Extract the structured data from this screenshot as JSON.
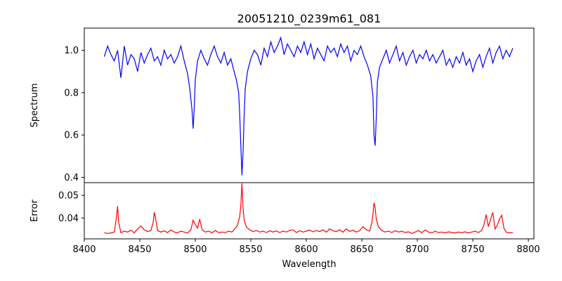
{
  "chart_data": [
    {
      "type": "line",
      "title": "20051210_0239m61_081",
      "xlabel": "",
      "ylabel": "Spectrum",
      "xlim": [
        8400,
        8805
      ],
      "ylim": [
        0.375,
        1.105
      ],
      "x_ticks": [
        8400,
        8450,
        8500,
        8550,
        8600,
        8650,
        8700,
        8750,
        8800
      ],
      "y_ticks": [
        0.4,
        0.6,
        0.8,
        1.0
      ],
      "y_tick_labels": [
        "0.4",
        "0.6",
        "0.8",
        "1.0"
      ],
      "series": [
        {
          "color": "#0000ff",
          "x": [
            8418,
            8421,
            8424,
            8427,
            8430,
            8433,
            8436,
            8439,
            8442,
            8445,
            8448,
            8451,
            8454,
            8457,
            8460,
            8463,
            8466,
            8469,
            8472,
            8475,
            8478,
            8481,
            8484,
            8487,
            8490,
            8493,
            8495,
            8497,
            8498,
            8499,
            8500,
            8502,
            8505,
            8508,
            8511,
            8514,
            8517,
            8520,
            8523,
            8526,
            8529,
            8532,
            8535,
            8537,
            8539,
            8540,
            8541,
            8542,
            8543,
            8544,
            8545,
            8547,
            8550,
            8553,
            8556,
            8559,
            8562,
            8565,
            8568,
            8571,
            8574,
            8577,
            8580,
            8583,
            8586,
            8589,
            8592,
            8595,
            8598,
            8601,
            8604,
            8607,
            8610,
            8613,
            8616,
            8619,
            8622,
            8625,
            8628,
            8631,
            8634,
            8637,
            8640,
            8643,
            8646,
            8649,
            8652,
            8655,
            8658,
            8660,
            8661,
            8662,
            8663,
            8664,
            8666,
            8669,
            8672,
            8675,
            8678,
            8681,
            8684,
            8687,
            8690,
            8693,
            8696,
            8699,
            8702,
            8705,
            8708,
            8711,
            8714,
            8717,
            8720,
            8723,
            8726,
            8729,
            8732,
            8735,
            8738,
            8741,
            8744,
            8747,
            8750,
            8753,
            8756,
            8759,
            8762,
            8765,
            8768,
            8771,
            8774,
            8777,
            8780,
            8783,
            8786
          ],
          "y": [
            0.97,
            1.02,
            0.98,
            0.95,
            1.0,
            0.87,
            1.02,
            0.93,
            0.98,
            0.96,
            0.9,
            0.99,
            0.94,
            0.98,
            1.01,
            0.95,
            0.97,
            0.93,
            1.0,
            0.96,
            0.98,
            0.94,
            0.97,
            1.02,
            0.95,
            0.89,
            0.82,
            0.72,
            0.63,
            0.72,
            0.86,
            0.95,
            1.0,
            0.96,
            0.93,
            0.98,
            1.02,
            0.97,
            0.94,
            0.99,
            0.93,
            0.96,
            0.9,
            0.86,
            0.8,
            0.7,
            0.55,
            0.41,
            0.52,
            0.7,
            0.82,
            0.9,
            0.96,
            1.0,
            0.98,
            0.93,
            1.01,
            0.97,
            1.04,
            0.99,
            1.02,
            1.06,
            0.98,
            1.03,
            1.0,
            0.97,
            1.02,
            0.99,
            1.04,
            0.98,
            1.03,
            0.96,
            1.01,
            0.98,
            0.95,
            1.02,
            0.99,
            1.01,
            0.97,
            1.03,
            0.99,
            1.02,
            0.95,
            1.0,
            0.98,
            1.02,
            0.97,
            0.93,
            0.88,
            0.78,
            0.6,
            0.55,
            0.68,
            0.85,
            0.92,
            0.96,
            1.0,
            0.94,
            0.98,
            1.02,
            0.95,
            0.99,
            0.93,
            0.97,
            1.0,
            0.94,
            0.98,
            0.96,
            1.0,
            0.95,
            0.98,
            0.94,
            0.97,
            1.0,
            0.93,
            0.96,
            0.92,
            0.97,
            0.94,
            0.99,
            0.93,
            0.96,
            0.9,
            0.95,
            0.98,
            0.92,
            0.97,
            1.01,
            0.94,
            0.99,
            1.02,
            0.96,
            1.0,
            0.97,
            1.01
          ]
        }
      ]
    },
    {
      "type": "line",
      "title": "",
      "xlabel": "Wavelength",
      "ylabel": "Error",
      "xlim": [
        8400,
        8805
      ],
      "ylim": [
        0.0308,
        0.0556
      ],
      "x_ticks": [
        8400,
        8450,
        8500,
        8550,
        8600,
        8650,
        8700,
        8750,
        8800
      ],
      "x_tick_labels": [
        "8400",
        "8450",
        "8500",
        "8550",
        "8600",
        "8650",
        "8700",
        "8750",
        "8800"
      ],
      "y_ticks": [
        0.04,
        0.05
      ],
      "y_tick_labels": [
        "0.04",
        "0.05"
      ],
      "series": [
        {
          "color": "#ff0000",
          "x": [
            8418,
            8421,
            8424,
            8427,
            8429,
            8430,
            8431,
            8433,
            8436,
            8439,
            8442,
            8445,
            8448,
            8451,
            8454,
            8457,
            8460,
            8462,
            8463,
            8464,
            8466,
            8469,
            8472,
            8475,
            8478,
            8481,
            8484,
            8487,
            8490,
            8493,
            8496,
            8498,
            8500,
            8502,
            8504,
            8506,
            8509,
            8512,
            8515,
            8518,
            8521,
            8524,
            8527,
            8530,
            8533,
            8536,
            8538,
            8540,
            8541,
            8542,
            8543,
            8544,
            8546,
            8549,
            8552,
            8555,
            8558,
            8561,
            8564,
            8567,
            8570,
            8573,
            8576,
            8579,
            8582,
            8585,
            8588,
            8591,
            8594,
            8597,
            8600,
            8603,
            8606,
            8609,
            8612,
            8615,
            8618,
            8621,
            8624,
            8627,
            8630,
            8633,
            8636,
            8639,
            8642,
            8645,
            8648,
            8651,
            8654,
            8657,
            8659,
            8660,
            8661,
            8662,
            8663,
            8665,
            8668,
            8671,
            8674,
            8677,
            8680,
            8683,
            8686,
            8689,
            8692,
            8695,
            8698,
            8701,
            8704,
            8707,
            8710,
            8713,
            8716,
            8719,
            8722,
            8725,
            8728,
            8731,
            8734,
            8737,
            8740,
            8743,
            8746,
            8749,
            8752,
            8755,
            8758,
            8760,
            8762,
            8764,
            8766,
            8768,
            8770,
            8772,
            8774,
            8776,
            8778,
            8780,
            8783,
            8786
          ],
          "y": [
            0.0335,
            0.0332,
            0.0334,
            0.0338,
            0.0405,
            0.0452,
            0.038,
            0.0335,
            0.0342,
            0.0338,
            0.0346,
            0.0335,
            0.0352,
            0.0365,
            0.0348,
            0.034,
            0.0345,
            0.038,
            0.0425,
            0.0405,
            0.0345,
            0.0338,
            0.0343,
            0.0336,
            0.0347,
            0.0338,
            0.0335,
            0.0342,
            0.0338,
            0.0334,
            0.0348,
            0.039,
            0.0372,
            0.0355,
            0.0395,
            0.035,
            0.0338,
            0.0342,
            0.0335,
            0.0345,
            0.0336,
            0.0338,
            0.0335,
            0.0342,
            0.0338,
            0.0355,
            0.0368,
            0.0405,
            0.0455,
            0.0553,
            0.0445,
            0.039,
            0.036,
            0.0348,
            0.034,
            0.0345,
            0.0338,
            0.0342,
            0.0336,
            0.0344,
            0.0338,
            0.0343,
            0.0336,
            0.0342,
            0.0338,
            0.0345,
            0.0348,
            0.0336,
            0.0344,
            0.0338,
            0.0342,
            0.0347,
            0.0339,
            0.0345,
            0.034,
            0.0348,
            0.0337,
            0.0352,
            0.0344,
            0.034,
            0.0348,
            0.0337,
            0.0352,
            0.0341,
            0.0346,
            0.0338,
            0.0344,
            0.0362,
            0.0348,
            0.0342,
            0.0378,
            0.0418,
            0.0468,
            0.0445,
            0.0395,
            0.036,
            0.0345,
            0.0338,
            0.0342,
            0.0336,
            0.0344,
            0.0338,
            0.0342,
            0.0336,
            0.0339,
            0.0332,
            0.0338,
            0.0345,
            0.0335,
            0.0347,
            0.0338,
            0.0334,
            0.0342,
            0.0336,
            0.0338,
            0.0334,
            0.0339,
            0.0336,
            0.0334,
            0.0338,
            0.0335,
            0.0339,
            0.0334,
            0.0338,
            0.0342,
            0.0336,
            0.0345,
            0.037,
            0.0415,
            0.0362,
            0.0395,
            0.0425,
            0.0352,
            0.0368,
            0.0395,
            0.0412,
            0.0355,
            0.0338,
            0.0334,
            0.0336
          ]
        }
      ]
    }
  ]
}
